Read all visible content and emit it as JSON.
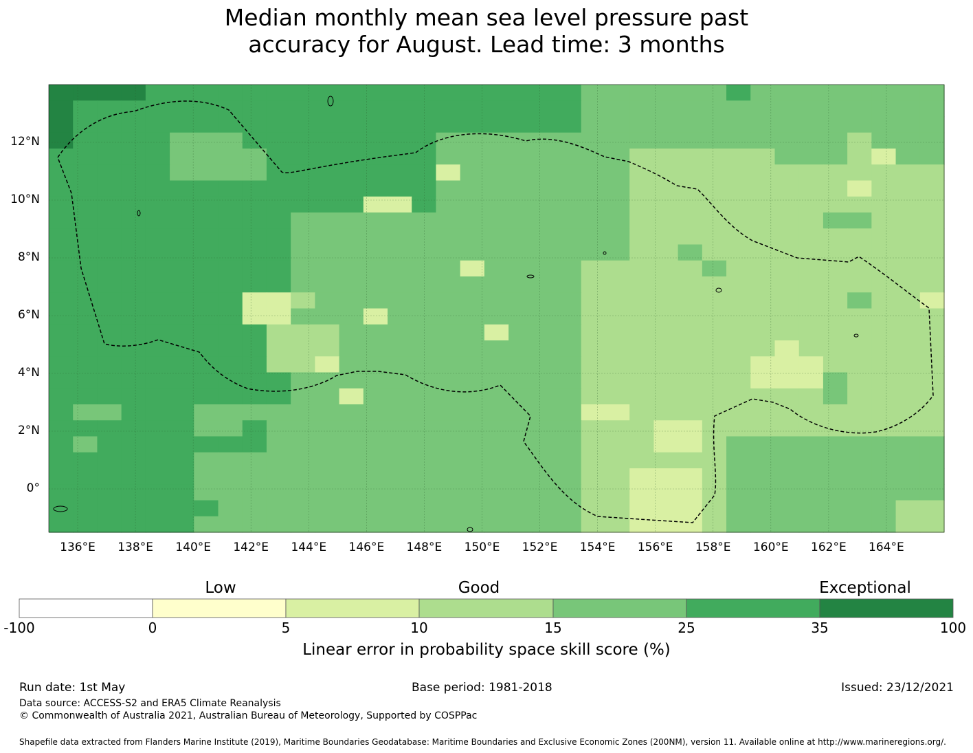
{
  "title_line1": "Median monthly mean sea level pressure past",
  "title_line2": "accuracy for August. Lead time: 3 months",
  "map": {
    "lon_range": [
      135,
      166
    ],
    "lat_range": [
      -1.5,
      14
    ],
    "lon_ticks": [
      "136°E",
      "138°E",
      "140°E",
      "142°E",
      "144°E",
      "146°E",
      "148°E",
      "150°E",
      "152°E",
      "154°E",
      "156°E",
      "158°E",
      "160°E",
      "162°E",
      "164°E"
    ],
    "lat_ticks": [
      "12°N",
      "10°N",
      "8°N",
      "6°N",
      "4°N",
      "2°N",
      "0°"
    ],
    "grid": true,
    "boundary_style": "dashed black EEZ outline"
  },
  "colorbar": {
    "category_labels": [
      "Low",
      "Good",
      "Exceptional"
    ],
    "tick_labels": [
      "-100",
      "0",
      "5",
      "10",
      "15",
      "25",
      "35",
      "100"
    ],
    "colors": [
      "#ffffff",
      "#ffffcc",
      "#d9f0a3",
      "#addd8e",
      "#78c679",
      "#41ab5d",
      "#238443"
    ],
    "title": "Linear error in probability space skill score (%)"
  },
  "footer": {
    "run_date": "Run date: 1st May",
    "base_period": "Base period: 1981-2018",
    "issued": "Issued: 23/12/2021",
    "data_source": "Data source: ACCESS-S2 and ERA5 Climate Reanalysis",
    "copyright": "© Commonwealth of Australia 2021, Australian Bureau of Meteorology, Supported by COSPPac",
    "shapefile": "Shapefile data extracted from Flanders Marine Institute (2019), Maritime Boundaries Geodatabase: Maritime Boundaries and Exclusive Economic Zones (200NM), version 11. Available online at http://www.marineregions.org/."
  }
}
